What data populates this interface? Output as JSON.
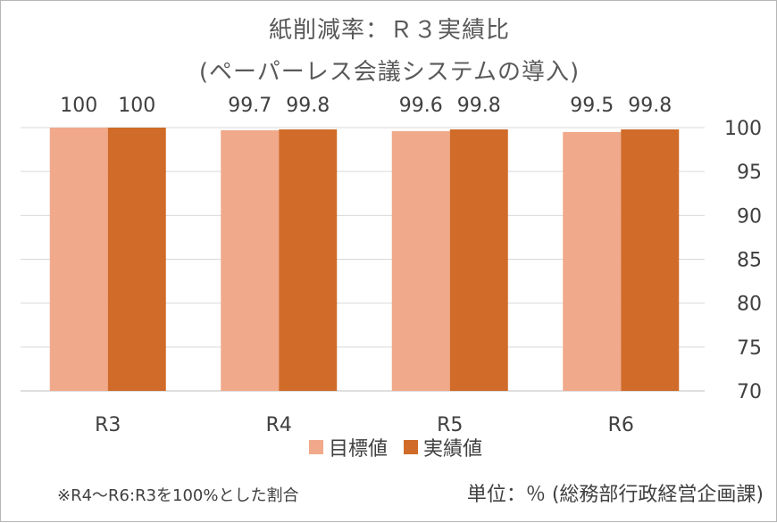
{
  "chart_data": {
    "type": "bar",
    "title": "紙削減率：Ｒ３実績比",
    "subtitle": "(ペーパーレス会議システムの導入)",
    "categories": [
      "R3",
      "R4",
      "R5",
      "R6"
    ],
    "series": [
      {
        "name": "目標値",
        "values": [
          100,
          99.7,
          99.6,
          99.5
        ],
        "labels": [
          "100",
          "99.7",
          "99.6",
          "99.5"
        ],
        "color": "#f0a98a"
      },
      {
        "name": "実績値",
        "values": [
          100,
          99.8,
          99.8,
          99.8
        ],
        "labels": [
          "100",
          "99.8",
          "99.8",
          "99.8"
        ],
        "color": "#d06b29"
      }
    ],
    "ylim": [
      70,
      100
    ],
    "yticks": [
      70,
      75,
      80,
      85,
      90,
      95,
      100
    ],
    "y_axis_side": "right",
    "grid": true,
    "legend_position": "bottom"
  },
  "footnote": "※R4～R6:R3を100%とした割合",
  "unit_note": "単位：％ (総務部行政経営企画課)"
}
